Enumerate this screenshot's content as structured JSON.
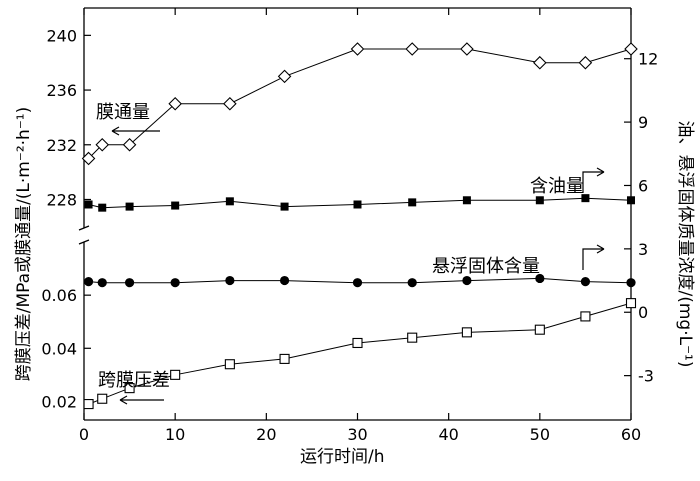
{
  "chart_data": {
    "type": "line",
    "xlabel": "运行时间/h",
    "ylabel_left": "跨膜压差/MPa或膜通量/(L·m⁻²·h⁻¹)",
    "ylabel_right": "油、悬浮固体质量浓度/(mg·L⁻¹)",
    "x_ticks": [
      "0",
      "10",
      "20",
      "30",
      "40",
      "50",
      "60"
    ],
    "y_left_upper_ticks": [
      "228",
      "232",
      "236",
      "240"
    ],
    "y_left_lower_ticks": [
      "0.02",
      "0.04",
      "0.06"
    ],
    "y_right_ticks": [
      "-3",
      "0",
      "3",
      "6",
      "9",
      "12"
    ],
    "xlim": [
      0,
      60
    ],
    "ylim_left_upper": [
      226.5,
      242
    ],
    "ylim_left_lower": [
      0.013,
      0.0755
    ],
    "ylim_right": [
      -5.1,
      14.4
    ],
    "grid": false,
    "series": [
      {
        "name": "膜通量",
        "axis": "left-upper",
        "marker": "open-diamond",
        "x": [
          0.5,
          2,
          5,
          10,
          16,
          22,
          30,
          36,
          42,
          50,
          55,
          60
        ],
        "values": [
          231,
          232,
          232,
          235,
          235,
          237,
          239,
          239,
          239,
          238,
          238,
          239
        ]
      },
      {
        "name": "含油量",
        "axis": "right",
        "marker": "filled-square",
        "x": [
          0.5,
          2,
          5,
          10,
          16,
          22,
          30,
          36,
          42,
          50,
          55,
          60
        ],
        "values": [
          5.1,
          4.95,
          5.0,
          5.05,
          5.25,
          5.0,
          5.1,
          5.2,
          5.3,
          5.3,
          5.4,
          5.3
        ]
      },
      {
        "name": "悬浮固体含量",
        "axis": "right",
        "marker": "filled-circle",
        "x": [
          0.5,
          2,
          5,
          10,
          16,
          22,
          30,
          36,
          42,
          50,
          55,
          60
        ],
        "values": [
          1.45,
          1.4,
          1.4,
          1.4,
          1.5,
          1.5,
          1.4,
          1.4,
          1.5,
          1.6,
          1.45,
          1.4
        ]
      },
      {
        "name": "跨膜压差",
        "axis": "left-lower",
        "marker": "open-square",
        "x": [
          0.5,
          2,
          5,
          10,
          16,
          22,
          30,
          36,
          42,
          50,
          55,
          60
        ],
        "values": [
          0.019,
          0.021,
          0.025,
          0.03,
          0.034,
          0.036,
          0.042,
          0.044,
          0.046,
          0.047,
          0.052,
          0.057
        ]
      }
    ]
  }
}
